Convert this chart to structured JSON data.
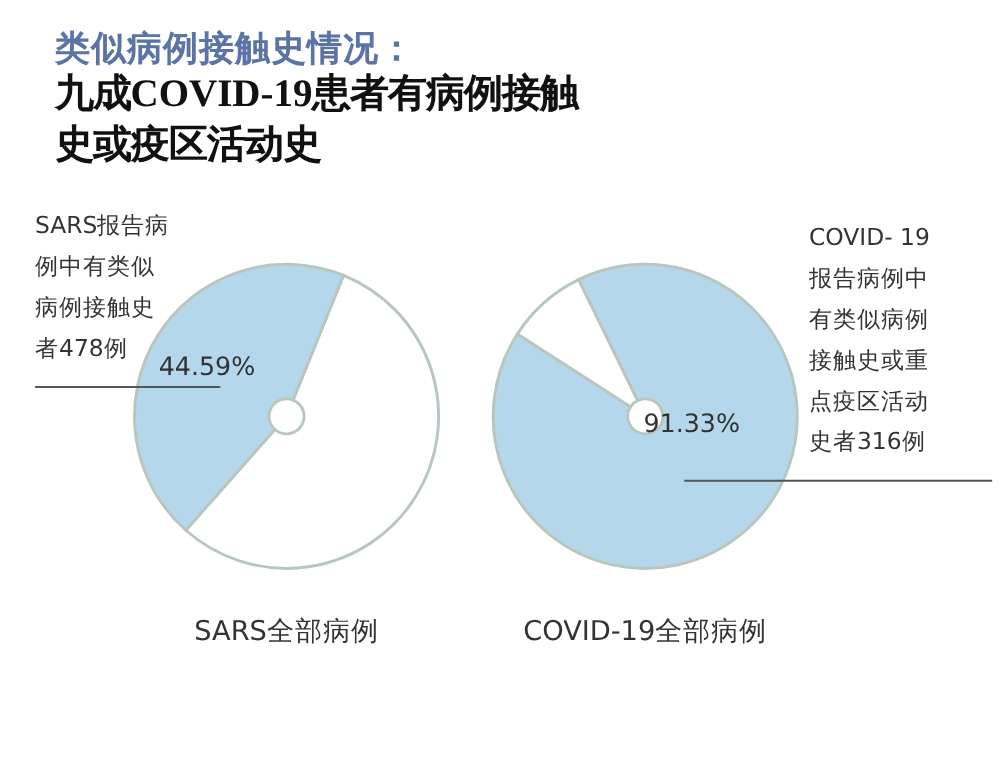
{
  "chart_data": [
    {
      "type": "pie",
      "title": "类似病例接触史情况：",
      "subtitle": "九成COVID-19患者有病例接触史或疫区活动史",
      "xlabel": "SARS全部病例",
      "categories": [
        null,
        null
      ],
      "values": [
        55.41,
        44.59
      ],
      "colors": [
        "#ffffff",
        "#b5d7ec"
      ],
      "value_labels": [
        null,
        "44.59%"
      ],
      "annotations": [
        "SARS报告病例中有类似病例接触史者478例"
      ]
    },
    {
      "type": "pie",
      "xlabel": "COVID-19全部病例",
      "categories": [
        null,
        null
      ],
      "values": [
        91.33,
        8.67
      ],
      "colors": [
        "#b5d7ec",
        "#ffffff"
      ],
      "value_labels": [
        "91.33%",
        null
      ],
      "annotations": [
        "COVID- 19报告病例中有类似病例接触史或重点疫区活动史者316例"
      ]
    }
  ]
}
